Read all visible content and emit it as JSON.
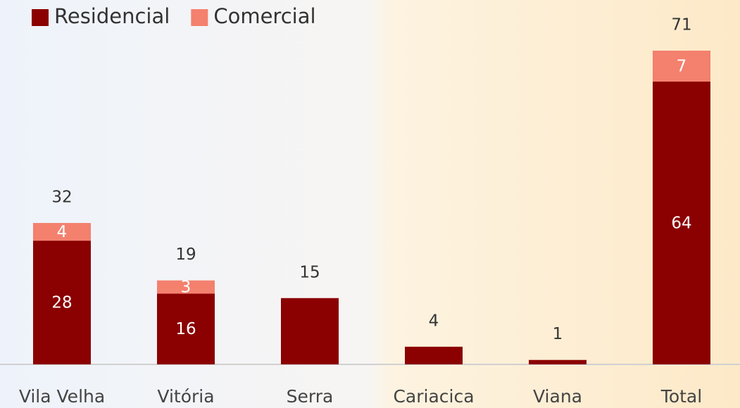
{
  "chart_data": {
    "type": "stacked_bar",
    "categories": [
      "Vila Velha",
      "Vitória",
      "Serra",
      "Cariacica",
      "Viana",
      "Total"
    ],
    "series": [
      {
        "name": "Residencial",
        "color": "#8b0000",
        "values": [
          28,
          16,
          15,
          4,
          1,
          64
        ]
      },
      {
        "name": "Comercial",
        "color": "#f4806e",
        "values": [
          4,
          3,
          null,
          null,
          null,
          7
        ]
      }
    ],
    "totals": [
      32,
      19,
      15,
      4,
      1,
      71
    ],
    "ylim": [
      0,
      71
    ],
    "legend": "top-left"
  }
}
